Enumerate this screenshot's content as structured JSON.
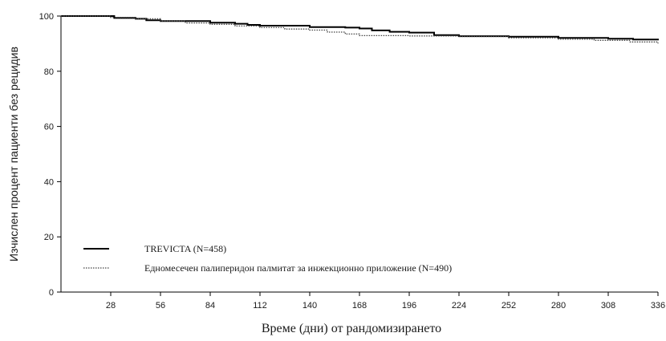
{
  "chart_data": {
    "type": "line",
    "title": "",
    "xlabel": "Време (дни) от рандомизирането",
    "ylabel": "Изчислен процент пациенти без рецидив",
    "xlim": [
      0,
      336
    ],
    "ylim": [
      0,
      100
    ],
    "x_ticks": [
      28,
      56,
      84,
      112,
      140,
      168,
      196,
      224,
      252,
      280,
      308,
      336
    ],
    "y_ticks": [
      0,
      20,
      40,
      60,
      80,
      100
    ],
    "grid": false,
    "legend_position": "bottom-left",
    "series": [
      {
        "name": "TREVICTA (N=458)",
        "style": "solid",
        "color": "#000000",
        "x": [
          0,
          14,
          30,
          42,
          48,
          56,
          84,
          98,
          105,
          112,
          140,
          160,
          168,
          175,
          185,
          196,
          210,
          224,
          252,
          280,
          308,
          322,
          336
        ],
        "y": [
          100,
          100,
          99.3,
          99,
          98.5,
          98.2,
          97.6,
          97.2,
          96.8,
          96.5,
          96,
          95.8,
          95.5,
          94.8,
          94.3,
          94,
          93.1,
          92.7,
          92.5,
          92.1,
          91.8,
          91.5,
          91.2
        ]
      },
      {
        "name": "Едномесечен палиперидон палмитат за инжекционно приложение (N=490)",
        "style": "dotted",
        "color": "#444444",
        "x": [
          0,
          14,
          28,
          42,
          56,
          70,
          84,
          98,
          112,
          126,
          140,
          150,
          160,
          168,
          196,
          224,
          252,
          280,
          300,
          320,
          336
        ],
        "y": [
          100,
          100,
          99.5,
          99,
          98.2,
          97.5,
          97,
          96.4,
          95.8,
          95.3,
          94.9,
          94.2,
          93.5,
          92.9,
          92.8,
          92.6,
          92.1,
          91.6,
          91.2,
          90.6,
          90.1
        ]
      }
    ]
  }
}
